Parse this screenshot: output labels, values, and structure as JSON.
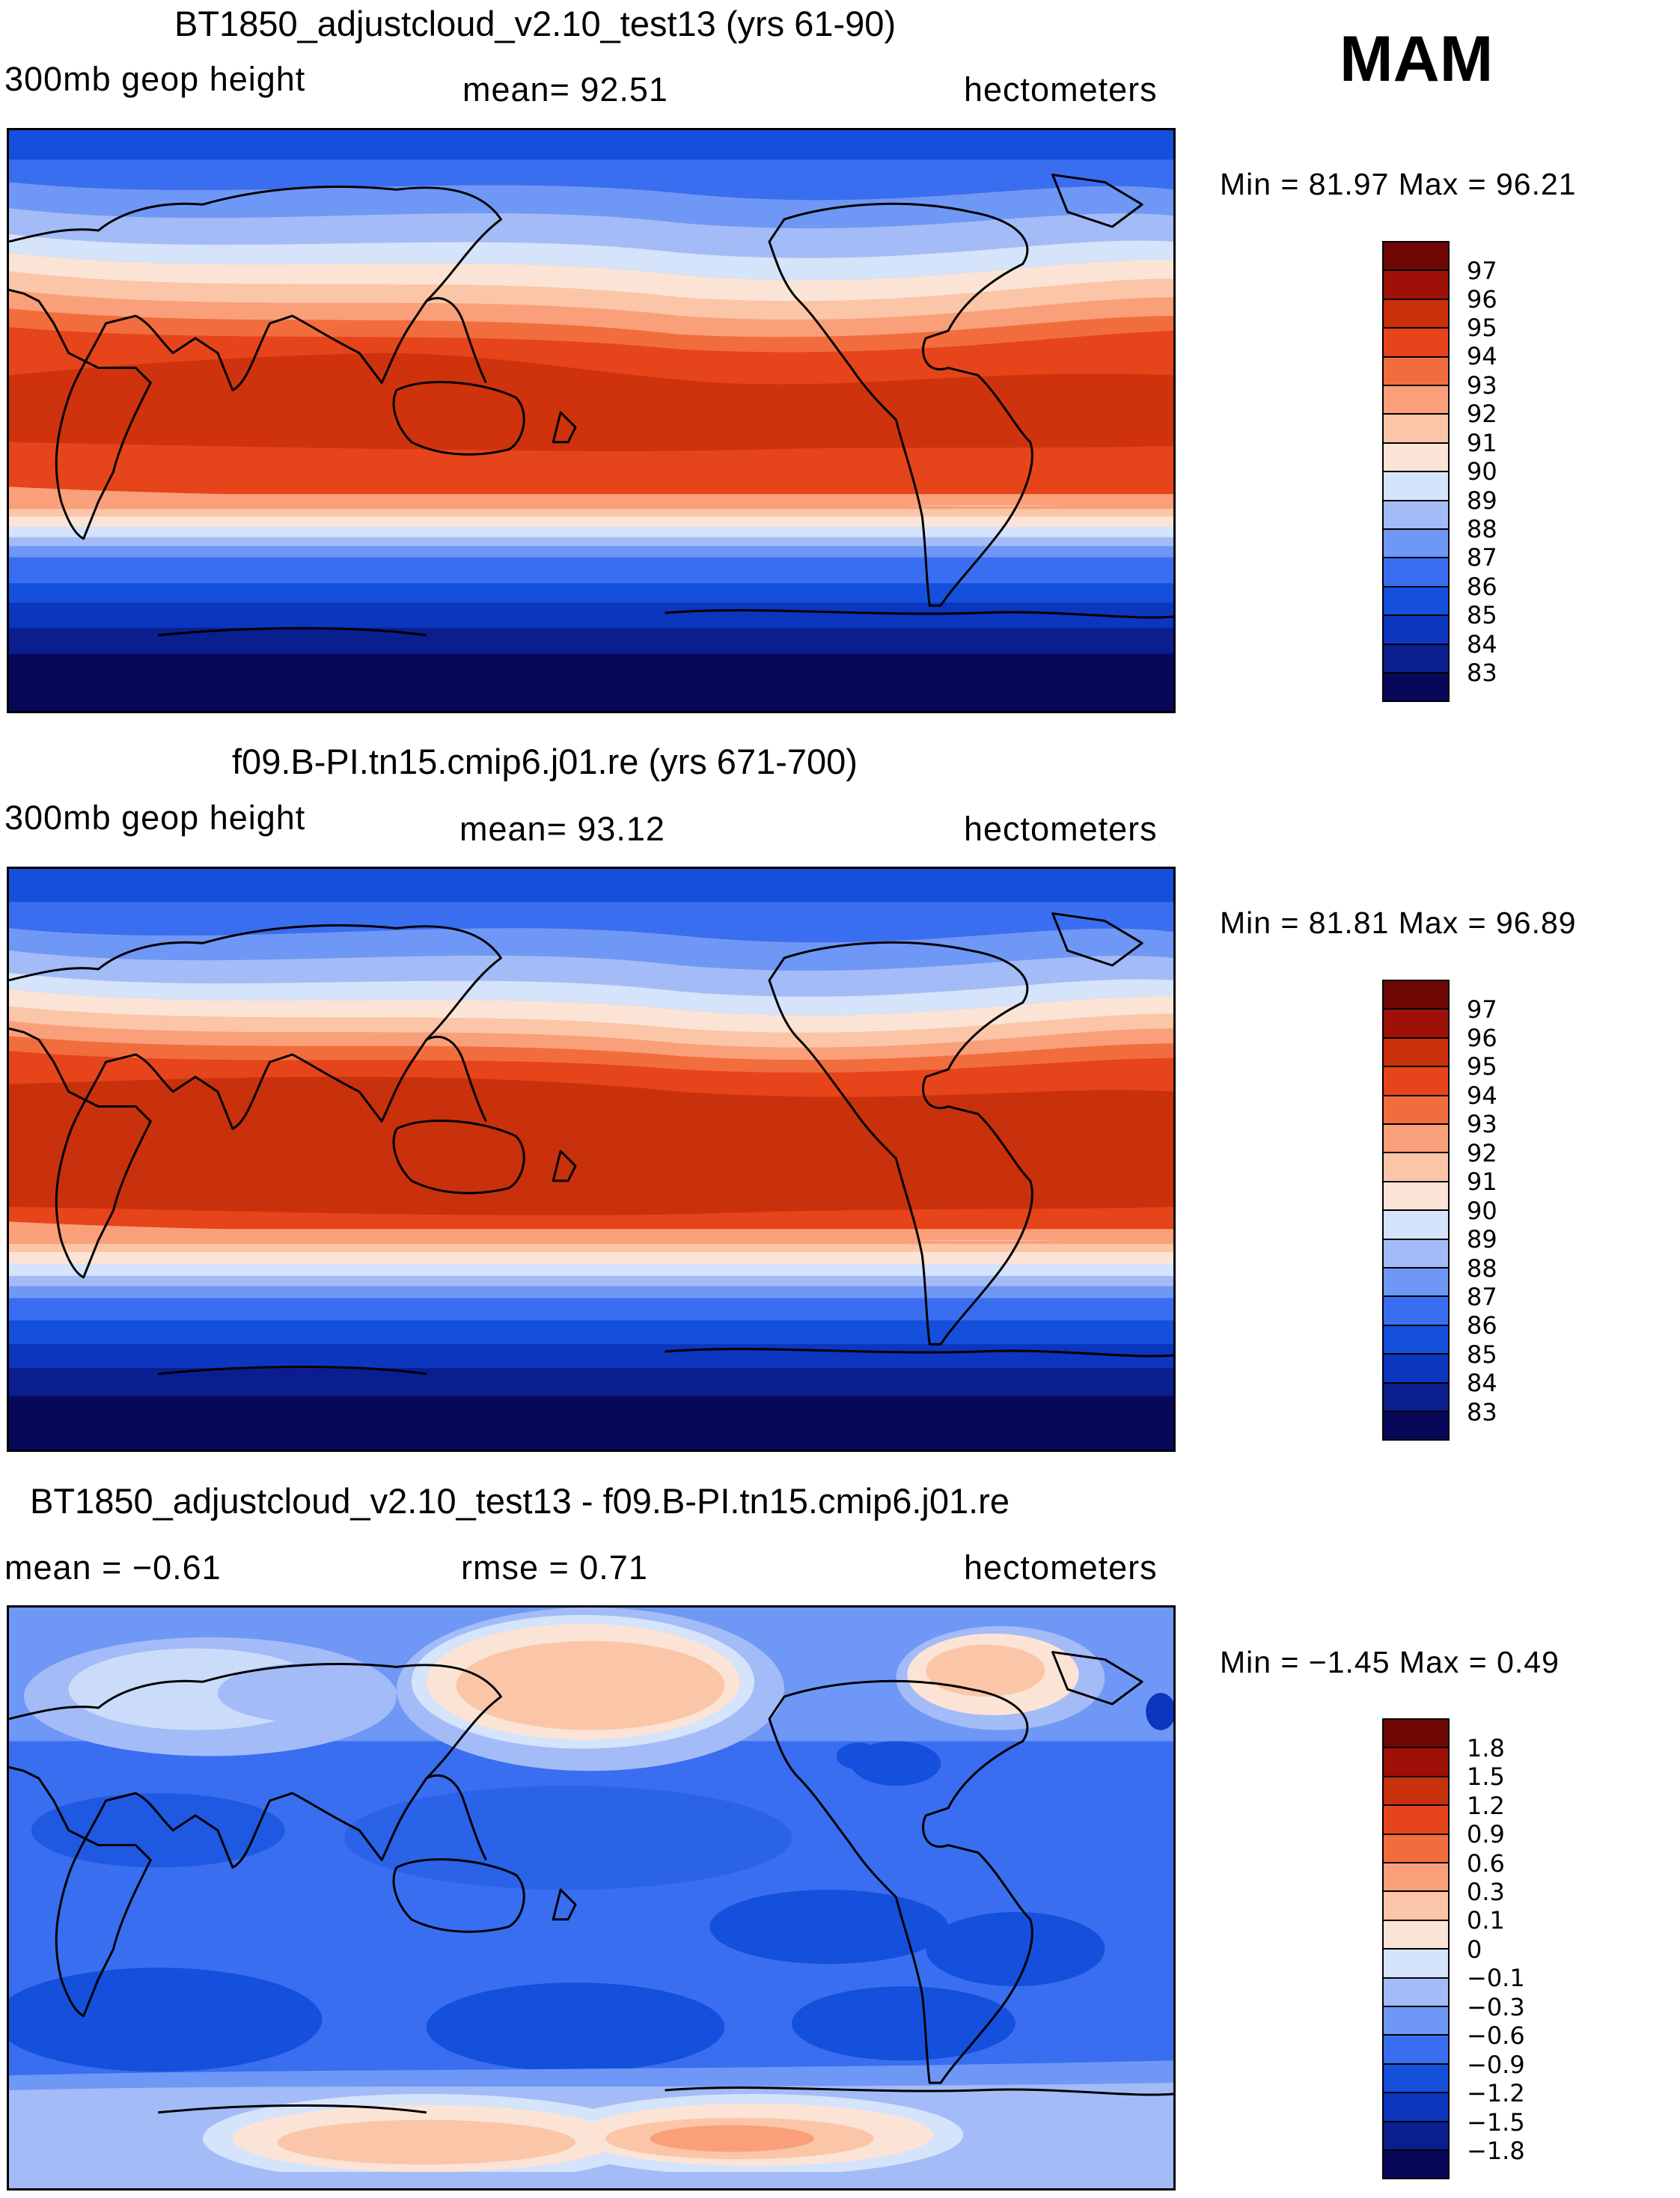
{
  "season": "MAM",
  "colors": [
    "#08085a",
    "#0a1e8f",
    "#0b36bd",
    "#1450dc",
    "#3a6ef0",
    "#6f97f5",
    "#a3bcf7",
    "#d5e3fb",
    "#fbe4d6",
    "#fbc5a8",
    "#f9a07a",
    "#f26d3d",
    "#e6441a",
    "#c9300c",
    "#9e1008",
    "#6e0604"
  ],
  "panels": [
    {
      "title": "BT1850_adjustcloud_v2.10_test13 (yrs 61-90)",
      "field": "300mb geop height",
      "stat": "mean=   92.51",
      "units": "hectometers",
      "minmax": "Min =    81.97  Max =    96.21",
      "levels": [
        "97",
        "96",
        "95",
        "94",
        "93",
        "92",
        "91",
        "90",
        "89",
        "88",
        "87",
        "86",
        "85",
        "84",
        "83"
      ]
    },
    {
      "title": "f09.B-PI.tn15.cmip6.j01.re (yrs 671-700)",
      "field": "300mb geop height",
      "stat": "mean=   93.12",
      "units": "hectometers",
      "minmax": "Min =    81.81  Max =    96.89",
      "levels": [
        "97",
        "96",
        "95",
        "94",
        "93",
        "92",
        "91",
        "90",
        "89",
        "88",
        "87",
        "86",
        "85",
        "84",
        "83"
      ]
    },
    {
      "title": "BT1850_adjustcloud_v2.10_test13 - f09.B-PI.tn15.cmip6.j01.re",
      "field": "mean =   −0.61",
      "stat": "rmse =     0.71",
      "units": "hectometers",
      "minmax": "Min =   −1.45  Max =      0.49",
      "levels": [
        "1.8",
        "1.5",
        "1.2",
        "0.9",
        "0.6",
        "0.3",
        "0.1",
        "0",
        "−0.1",
        "−0.3",
        "−0.6",
        "−0.9",
        "−1.2",
        "−1.5",
        "−1.8"
      ]
    }
  ]
}
